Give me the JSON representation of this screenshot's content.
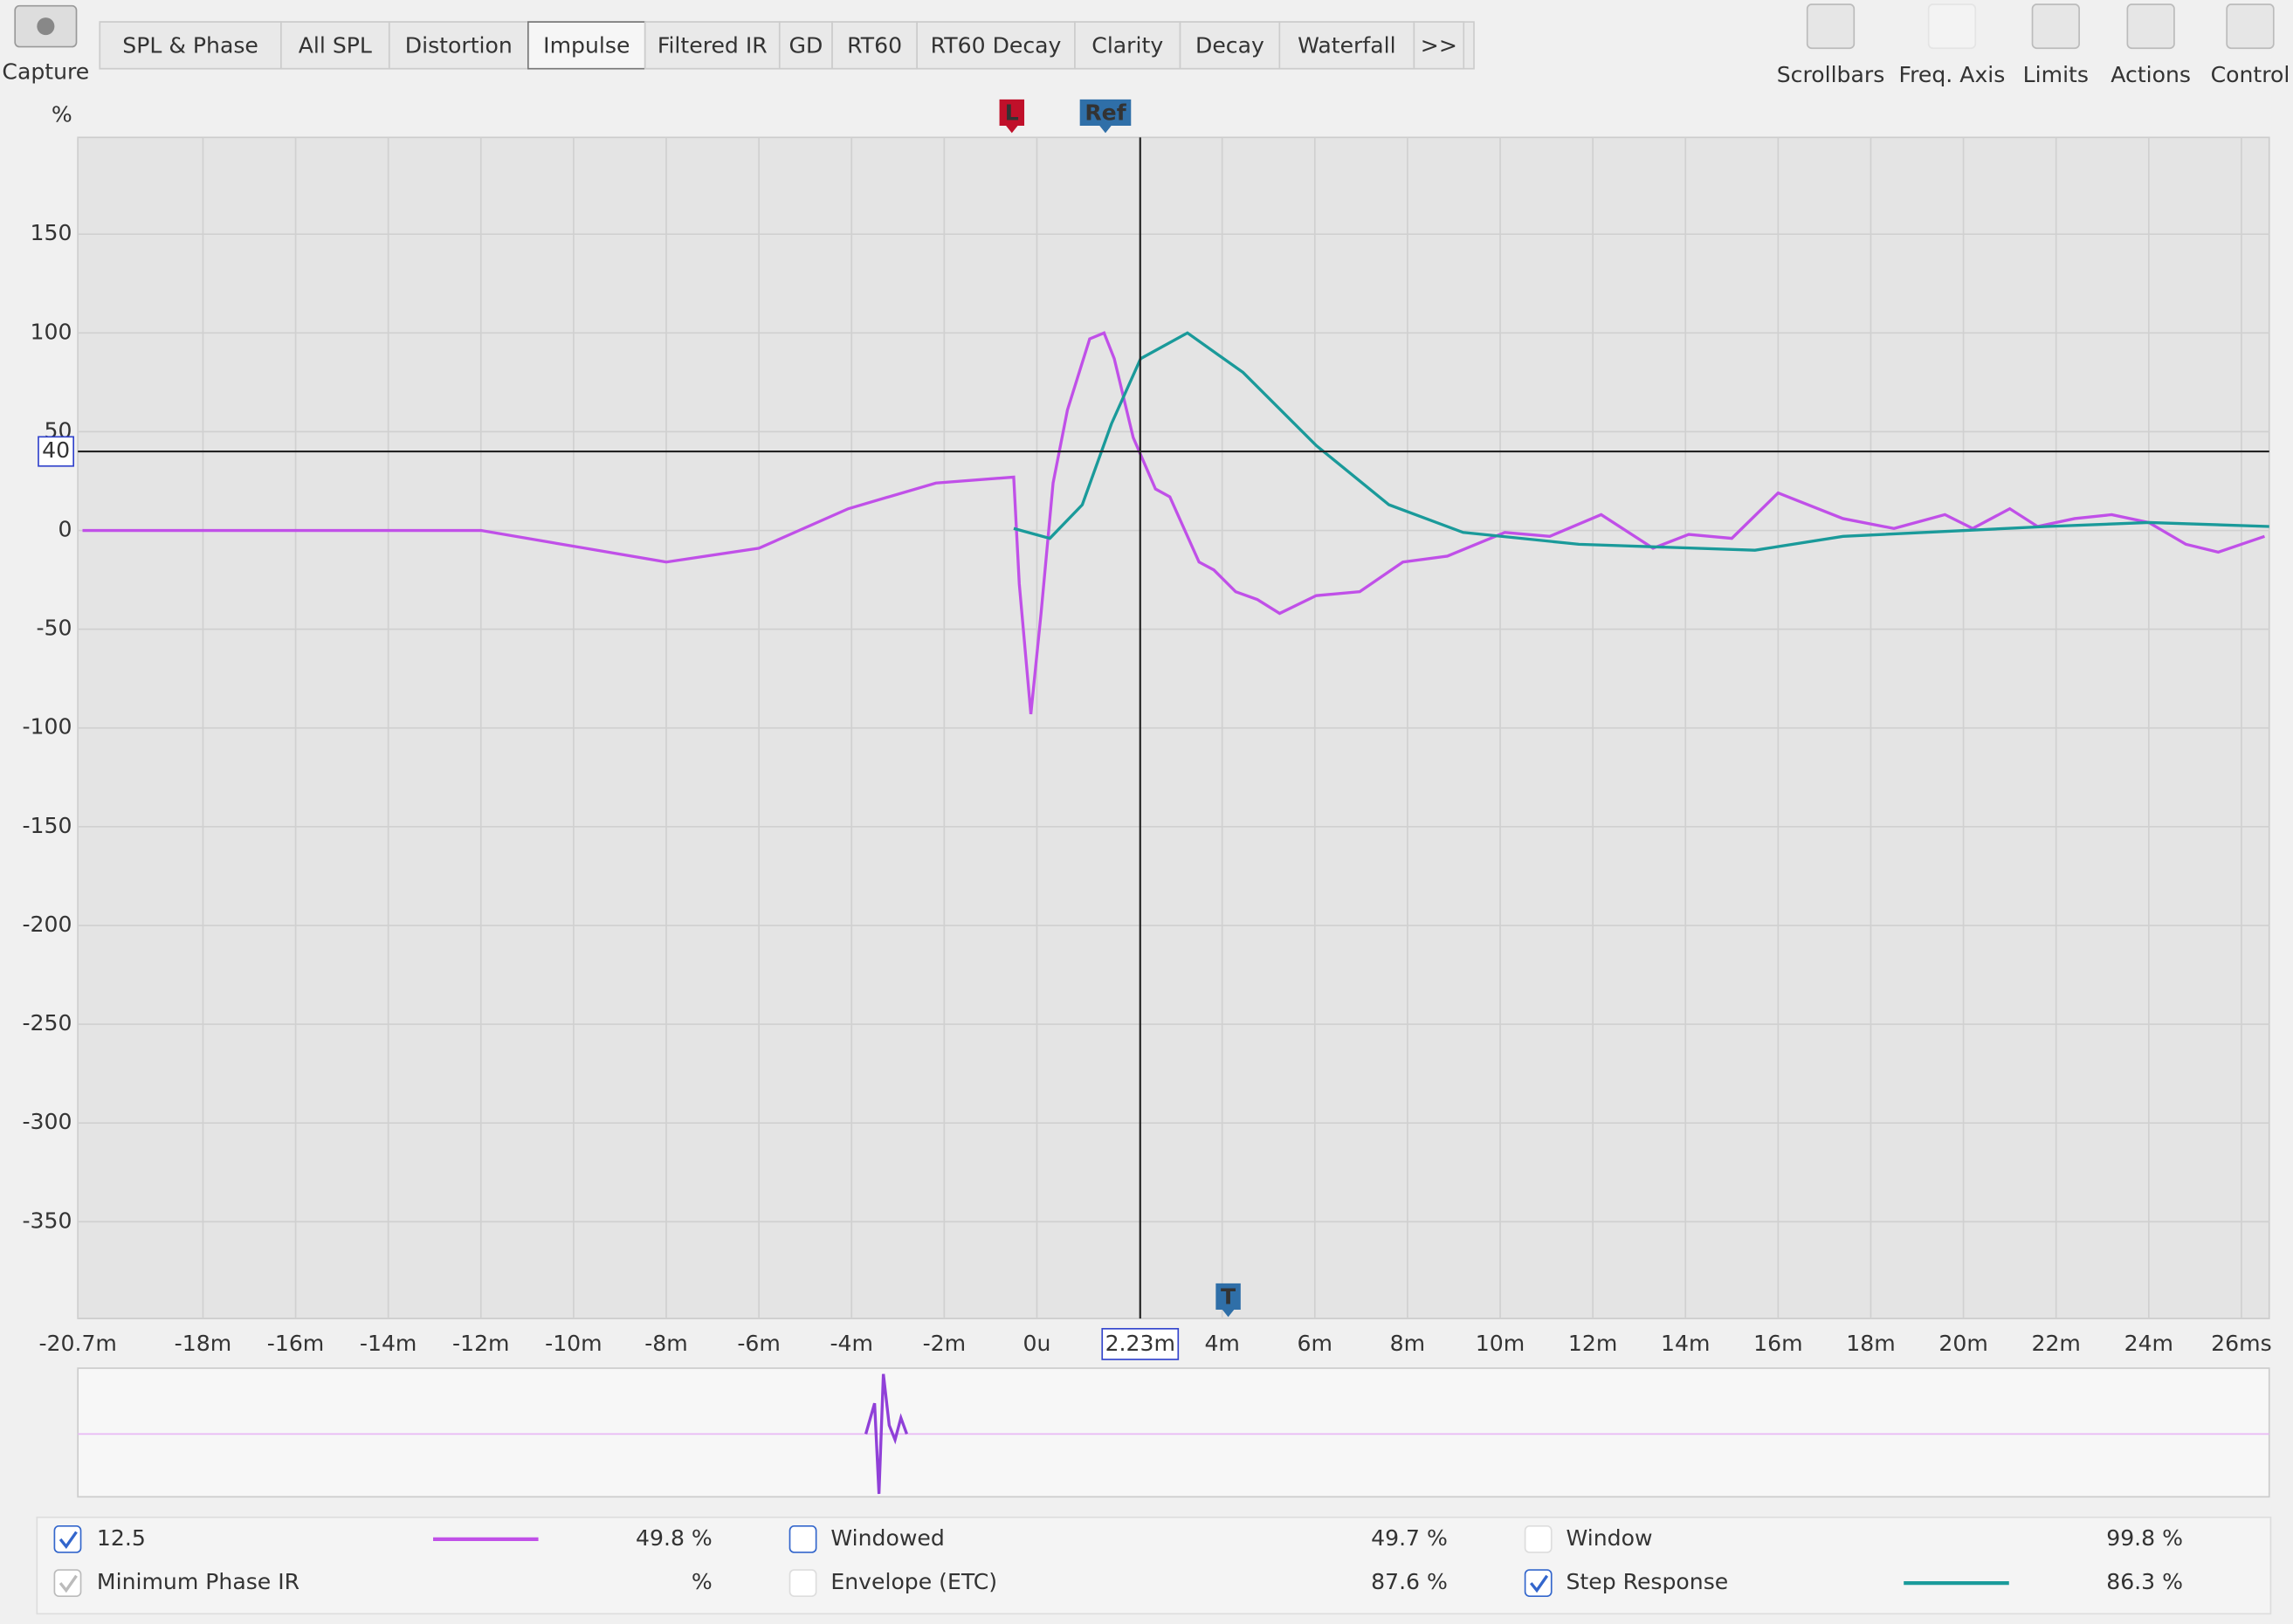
{
  "toolbar": {
    "capture": "Capture",
    "tabs": [
      "SPL & Phase",
      "All SPL",
      "Distortion",
      "Impulse",
      "Filtered IR",
      "GD",
      "RT60",
      "RT60 Decay",
      "Clarity",
      "Decay",
      "Waterfall",
      ">>"
    ],
    "active_tab": "Impulse",
    "buttons": [
      "Scrollbars",
      "Freq. Axis",
      "Limits",
      "Actions",
      "Control"
    ]
  },
  "chart_data": {
    "type": "line",
    "y_label": "%",
    "xlim": [
      -20.7,
      26.6
    ],
    "ylim": [
      -399,
      199
    ],
    "xticks": [
      {
        "value": -20.7,
        "label": "-20.7m"
      },
      {
        "value": -18,
        "label": "-18m"
      },
      {
        "value": -16,
        "label": "-16m"
      },
      {
        "value": -14,
        "label": "-14m"
      },
      {
        "value": -12,
        "label": "-12m"
      },
      {
        "value": -10,
        "label": "-10m"
      },
      {
        "value": -8,
        "label": "-8m"
      },
      {
        "value": -6,
        "label": "-6m"
      },
      {
        "value": -4,
        "label": "-4m"
      },
      {
        "value": -2,
        "label": "-2m"
      },
      {
        "value": 0,
        "label": "0u"
      },
      {
        "value": 4,
        "label": "4m"
      },
      {
        "value": 6,
        "label": "6m"
      },
      {
        "value": 8,
        "label": "8m"
      },
      {
        "value": 10,
        "label": "10m"
      },
      {
        "value": 12,
        "label": "12m"
      },
      {
        "value": 14,
        "label": "14m"
      },
      {
        "value": 16,
        "label": "16m"
      },
      {
        "value": 18,
        "label": "18m"
      },
      {
        "value": 20,
        "label": "20m"
      },
      {
        "value": 22,
        "label": "22m"
      },
      {
        "value": 24,
        "label": "24m"
      },
      {
        "value": 26,
        "label": "26ms"
      }
    ],
    "yticks": [
      150,
      100,
      50,
      0,
      -50,
      -100,
      -150,
      -200,
      -250,
      -300,
      -350
    ],
    "grid": true,
    "cursor": {
      "x": {
        "value": 2.23,
        "label": "2.23m"
      },
      "y": 40
    },
    "markers": [
      {
        "label": "L",
        "x": -0.54,
        "color": "#c0102a"
      },
      {
        "label": "Ref",
        "x": 1.48,
        "color": "#2f6fa8"
      },
      {
        "label": "T",
        "x": 4.13,
        "color": "#2f6fa8"
      }
    ],
    "series": [
      {
        "name": "12.5",
        "color": "#c050e8",
        "x": [
          -20.6,
          -12,
          -9.75,
          -8,
          -6,
          -4.07,
          -2.18,
          -0.5,
          -0.38,
          -0.13,
          0.09,
          0.35,
          0.66,
          1.14,
          1.45,
          1.67,
          2.08,
          2.56,
          2.87,
          3.5,
          3.82,
          4.29,
          4.76,
          5.24,
          6.03,
          6.97,
          7.9,
          8.86,
          10.1,
          11.07,
          12.18,
          13.3,
          14.07,
          15,
          16,
          17.4,
          18.5,
          19.6,
          20.2,
          21,
          21.6,
          22.4,
          23.2,
          24,
          24.8,
          25.5,
          26.5
        ],
        "values": [
          0,
          0,
          -9,
          -16,
          -9,
          11,
          24,
          27,
          -27,
          -93,
          -42,
          24,
          61,
          97,
          100,
          87,
          47,
          21,
          17,
          -16,
          -20,
          -31,
          -35,
          -42,
          -33,
          -31,
          -16,
          -13,
          -1,
          -3,
          8,
          -9,
          -2,
          -4,
          19,
          6,
          1,
          8,
          1,
          11,
          2,
          6,
          8,
          4,
          -7,
          -11,
          -3
        ]
      },
      {
        "name": "Step Response",
        "color": "#1a9a9a",
        "x": [
          -0.5,
          0.28,
          0.98,
          1.61,
          2.24,
          3.25,
          4.45,
          6.03,
          7.6,
          9.2,
          11.7,
          15.5,
          17.4,
          21.8,
          24,
          26.6
        ],
        "values": [
          1,
          -4,
          13,
          54,
          87,
          100,
          80,
          43,
          13,
          -1,
          -7,
          -10,
          -3,
          2,
          4,
          2
        ]
      }
    ]
  },
  "legend": {
    "series_0_percent": "49.8 %",
    "windowed": "Windowed",
    "windowed_percent": "49.7 %",
    "window": "Window",
    "window_percent": "99.8 %",
    "min_phase": "Minimum Phase IR",
    "min_phase_percent": "%",
    "envelope": "Envelope (ETC)",
    "envelope_percent": "87.6 %",
    "series_1_percent": "86.3 %"
  }
}
